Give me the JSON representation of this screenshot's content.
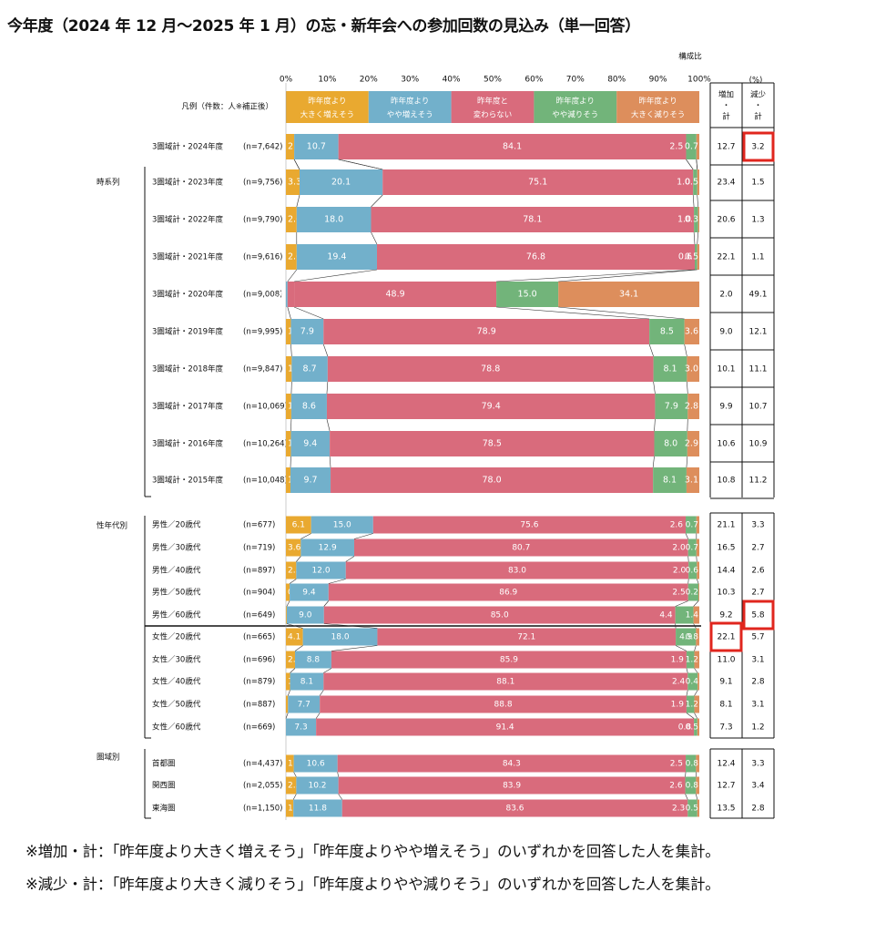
{
  "title": "今年度（2024 年 12 月〜2025 年 1 月）の忘・新年会への参加回数の見込み（単一回答）",
  "notes": [
    "※増加・計：「昨年度より大きく増えそう」「昨年度よりやや増えそう」のいずれかを回答した人を集計。",
    "※減少・計：「昨年度より大きく減りそう」「昨年度よりやや減りそう」のいずれかを回答した人を集計。"
  ],
  "colors": {
    "large_increase": "#E9A930",
    "slight_increase": "#72B0CB",
    "no_change": "#D96B7C",
    "slight_decrease": "#72B47A",
    "large_decrease": "#DD8E5C",
    "highlight": "#E0261E"
  },
  "chart_data": {
    "type": "bar",
    "orientation": "horizontal",
    "stacked": true,
    "axis_caption": "構成比",
    "unit_label": "(%)",
    "x_ticks": [
      "0%",
      "10%",
      "20%",
      "30%",
      "40%",
      "50%",
      "60%",
      "70%",
      "80%",
      "90%",
      "100%"
    ],
    "xlim": [
      0,
      100
    ],
    "legend_title": "凡例（件数：人※補正後）",
    "series": [
      {
        "key": "large_increase",
        "name": "昨年度より\n大きく増えそう"
      },
      {
        "key": "slight_increase",
        "name": "昨年度より\nやや増えそう"
      },
      {
        "key": "no_change",
        "name": "昨年度と\n変わらない"
      },
      {
        "key": "slight_decrease",
        "name": "昨年度より\nやや減りそう"
      },
      {
        "key": "large_decrease",
        "name": "昨年度より\n大きく減りそう"
      }
    ],
    "summary_headers": [
      "増加\n・\n計",
      "減少\n・\n計"
    ],
    "groups": [
      {
        "label": "",
        "rows": [
          {
            "label": "3圏域計・2024年度",
            "n": "(n=7,642)",
            "labels": [
              "2.0",
              "10.7",
              "84.1",
              "2.5",
              "0.7"
            ],
            "increase_total": "12.7",
            "decrease_total": "3.2",
            "highlight_decrease": true
          }
        ]
      },
      {
        "label": "時系列",
        "rows": [
          {
            "label": "3圏域計・2023年度",
            "n": "(n=9,756)",
            "labels": [
              "3.3",
              "20.1",
              "75.1",
              "1.0",
              "0.5"
            ],
            "increase_total": "23.4",
            "decrease_total": "1.5"
          },
          {
            "label": "3圏域計・2022年度",
            "n": "(n=9,790)",
            "labels": [
              "2.6",
              "18.0",
              "78.1",
              "1.0",
              "0.3"
            ],
            "increase_total": "20.6",
            "decrease_total": "1.3"
          },
          {
            "label": "3圏域計・2021年度",
            "n": "(n=9,616)",
            "labels": [
              "2.6",
              "19.4",
              "76.8",
              "0.6",
              "0.5"
            ],
            "increase_total": "22.1",
            "decrease_total": "1.1"
          },
          {
            "label": "3圏域計・2020年度",
            "n": "(n=9,008)",
            "labels": [
              "",
              "0.4",
              "1.6",
              "48.9",
              "15.0",
              "34.1"
            ],
            "values": [
              0.0,
              0.4,
              1.6,
              48.9,
              15.0,
              34.1
            ],
            "colors_override": [
              "#E9A930",
              "#72B0CB",
              "#D96B7C",
              "#D96B7C",
              "#72B47A",
              "#DD8E5C"
            ],
            "increase_total": "2.0",
            "decrease_total": "49.1"
          },
          {
            "label": "3圏域計・2019年度",
            "n": "(n=9,995)",
            "labels": [
              "1.2",
              "7.9",
              "78.9",
              "8.5",
              "3.6"
            ],
            "increase_total": "9.0",
            "decrease_total": "12.1"
          },
          {
            "label": "3圏域計・2018年度",
            "n": "(n=9,847)",
            "labels": [
              "1.4",
              "8.7",
              "78.8",
              "8.1",
              "3.0"
            ],
            "increase_total": "10.1",
            "decrease_total": "11.1"
          },
          {
            "label": "3圏域計・2017年度",
            "n": "(n=10,069)",
            "labels": [
              "1.3",
              "8.6",
              "79.4",
              "7.9",
              "2.8"
            ],
            "increase_total": "9.9",
            "decrease_total": "10.7"
          },
          {
            "label": "3圏域計・2016年度",
            "n": "(n=10,264)",
            "labels": [
              "1.2",
              "9.4",
              "78.5",
              "8.0",
              "2.9"
            ],
            "increase_total": "10.6",
            "decrease_total": "10.9"
          },
          {
            "label": "3圏域計・2015年度",
            "n": "(n=10,048)",
            "labels": [
              "1.1",
              "9.7",
              "78.0",
              "8.1",
              "3.1"
            ],
            "increase_total": "10.8",
            "decrease_total": "11.2"
          }
        ]
      },
      {
        "label": "性年代別",
        "rows": [
          {
            "label": "男性／20歳代",
            "n": "(n=677)",
            "labels": [
              "6.1",
              "15.0",
              "75.6",
              "2.6",
              "0.7"
            ],
            "increase_total": "21.1",
            "decrease_total": "3.3"
          },
          {
            "label": "男性／30歳代",
            "n": "(n=719)",
            "labels": [
              "3.6",
              "12.9",
              "80.7",
              "2.0",
              "0.7"
            ],
            "increase_total": "16.5",
            "decrease_total": "2.7"
          },
          {
            "label": "男性／40歳代",
            "n": "(n=897)",
            "labels": [
              "2.5",
              "12.0",
              "83.0",
              "2.0",
              "0.6"
            ],
            "increase_total": "14.4",
            "decrease_total": "2.6"
          },
          {
            "label": "男性／50歳代",
            "n": "(n=904)",
            "labels": [
              "0.9",
              "9.4",
              "86.9",
              "2.5",
              "0.2"
            ],
            "increase_total": "10.3",
            "decrease_total": "2.7"
          },
          {
            "label": "男性／60歳代",
            "n": "(n=649)",
            "labels": [
              "0.2",
              "9.0",
              "85.0",
              "4.4",
              "1.4"
            ],
            "increase_total": "9.2",
            "decrease_total": "5.8",
            "highlight_decrease": true
          },
          {
            "label": "女性／20歳代",
            "n": "(n=665)",
            "labels": [
              "4.1",
              "18.0",
              "72.1",
              "4.9",
              "0.8"
            ],
            "increase_total": "22.1",
            "decrease_total": "5.7",
            "highlight_increase": true
          },
          {
            "label": "女性／30歳代",
            "n": "(n=696)",
            "labels": [
              "2.2",
              "8.8",
              "85.9",
              "1.9",
              "1.2"
            ],
            "increase_total": "11.0",
            "decrease_total": "3.1"
          },
          {
            "label": "女性／40歳代",
            "n": "(n=879)",
            "labels": [
              "1.0",
              "8.1",
              "88.1",
              "2.4",
              "0.4"
            ],
            "increase_total": "9.1",
            "decrease_total": "2.8"
          },
          {
            "label": "女性／50歳代",
            "n": "(n=887)",
            "labels": [
              "0.5",
              "7.7",
              "88.8",
              "1.9",
              "1.2"
            ],
            "increase_total": "8.1",
            "decrease_total": "3.1"
          },
          {
            "label": "女性／60歳代",
            "n": "(n=669)",
            "labels": [
              "—",
              "7.3",
              "91.4",
              "0.8",
              "0.5"
            ],
            "values": [
              0.0,
              7.3,
              91.4,
              0.8,
              0.5
            ],
            "increase_total": "7.3",
            "decrease_total": "1.2"
          }
        ]
      },
      {
        "label": "圏域別",
        "rows": [
          {
            "label": "首都圏",
            "n": "(n=4,437)",
            "labels": [
              "1.9",
              "10.6",
              "84.3",
              "2.5",
              "0.8"
            ],
            "increase_total": "12.4",
            "decrease_total": "3.3"
          },
          {
            "label": "関西圏",
            "n": "(n=2,055)",
            "labels": [
              "2.5",
              "10.2",
              "83.9",
              "2.6",
              "0.8"
            ],
            "increase_total": "12.7",
            "decrease_total": "3.4"
          },
          {
            "label": "東海圏",
            "n": "(n=1,150)",
            "labels": [
              "1.8",
              "11.8",
              "83.6",
              "2.3",
              "0.5"
            ],
            "increase_total": "13.5",
            "decrease_total": "2.8"
          }
        ]
      }
    ]
  }
}
